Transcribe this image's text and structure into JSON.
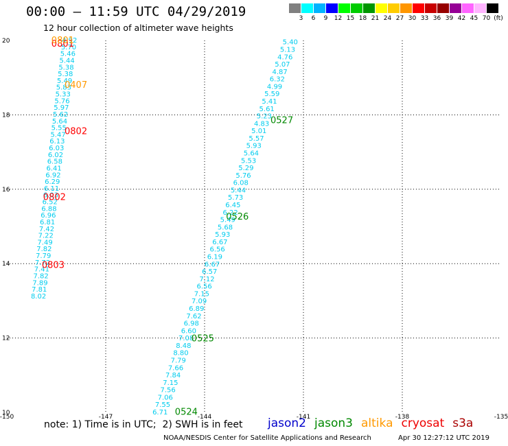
{
  "title": "00:00 – 11:59 UTC 04/29/2019",
  "subtitle": "12 hour collection of altimeter wave heights",
  "legend": {
    "unit": "(ft)",
    "colors": [
      "#808080",
      "#00ffff",
      "#00b4ff",
      "#0000ff",
      "#00ff00",
      "#00cc00",
      "#009600",
      "#ffff00",
      "#ffcc00",
      "#ff9600",
      "#ff0000",
      "#c80000",
      "#960000",
      "#960096",
      "#ff64ff",
      "#ffb4ff",
      "#000000"
    ],
    "labels": [
      "3",
      "6",
      "9",
      "12",
      "15",
      "18",
      "21",
      "24",
      "27",
      "30",
      "33",
      "36",
      "39",
      "42",
      "45",
      "70"
    ]
  },
  "note": "note: 1) Time is in UTC;  2) SWH is in feet",
  "satellites": [
    {
      "name": "jason2",
      "color": "#0000cc"
    },
    {
      "name": "jason3",
      "color": "#008800"
    },
    {
      "name": "altika",
      "color": "#ff9900"
    },
    {
      "name": "cryosat",
      "color": "#ee0000"
    },
    {
      "name": "s3a",
      "color": "#aa0000"
    }
  ],
  "credit": "NOAA/NESDIS Center for Satellite Applications and Research",
  "generated": "Apr 30 12:27:12 UTC 2019",
  "chart_data": {
    "type": "scatter",
    "title": "12 hour collection of altimeter wave heights",
    "xlim": [
      -150,
      -135
    ],
    "ylim": [
      10,
      20
    ],
    "x_ticks": [
      -150,
      -147,
      -144,
      -141,
      -138,
      -135
    ],
    "x_tick_labels": [
      "-150",
      "-147",
      "-144",
      "-141",
      "-138",
      "-135"
    ],
    "y_ticks": [
      10,
      12,
      14,
      16,
      18,
      20
    ],
    "y_tick_labels": [
      "10",
      "12",
      "14",
      "16",
      "18",
      "20"
    ],
    "grid": "dotted",
    "label_color": "#00ccee",
    "tracks": [
      {
        "name": "left track",
        "start": [
          -149.04,
          13.12
        ],
        "end": [
          -148.1,
          20.0
        ],
        "values": [
          "8.02",
          "7.81",
          "7.89",
          "7.82",
          "7.41",
          "7.72",
          "7.79",
          "7.82",
          "7.49",
          "7.22",
          "7.42",
          "6.81",
          "6.96",
          "6.88",
          "6.52",
          "6.03",
          "6.11",
          "6.29",
          "6.92",
          "6.41",
          "6.58",
          "6.02",
          "6.03",
          "6.13",
          "5.47",
          "5.55",
          "5.64",
          "5.62",
          "5.97",
          "5.76",
          "5.33",
          "5.83",
          "5.49",
          "5.38",
          "5.38",
          "5.44",
          "5.46",
          "5.70",
          "4.92"
        ]
      },
      {
        "name": "right track",
        "start": [
          -145.35,
          10.0
        ],
        "end": [
          -141.4,
          19.95
        ],
        "values": [
          "6.71",
          "7.55",
          "7.06",
          "7.56",
          "7.15",
          "7.84",
          "7.66",
          "7.79",
          "8.80",
          "8.48",
          "7.08",
          "6.60",
          "6.98",
          "7.62",
          "6.89",
          "7.09",
          "7.15",
          "6.56",
          "7.12",
          "6.57",
          "6.67",
          "6.19",
          "6.56",
          "6.67",
          "5.93",
          "5.68",
          "5.49",
          "6.22",
          "6.45",
          "5.73",
          "5.44",
          "6.08",
          "5.76",
          "5.29",
          "5.53",
          "5.64",
          "5.93",
          "5.57",
          "5.01",
          "4.83",
          "5.23",
          "5.61",
          "5.41",
          "5.59",
          "4.99",
          "6.32",
          "4.87",
          "5.07",
          "4.76",
          "5.13",
          "5.40"
        ]
      }
    ],
    "time_labels": [
      {
        "text": "0801",
        "x": -148.65,
        "y": 19.93,
        "color": "#ff0000"
      },
      {
        "text": "0801",
        "x": -148.65,
        "y": 20.02,
        "color": "#ff9900"
      },
      {
        "text": "0407",
        "x": -148.25,
        "y": 18.82,
        "color": "#ff9900"
      },
      {
        "text": "0802",
        "x": -148.25,
        "y": 17.57,
        "color": "#ff0000"
      },
      {
        "text": "0802",
        "x": -148.9,
        "y": 15.8,
        "color": "#ff0000"
      },
      {
        "text": "0803",
        "x": -148.94,
        "y": 13.98,
        "color": "#ff0000"
      },
      {
        "text": "0527",
        "x": -142.0,
        "y": 17.87,
        "color": "#008800"
      },
      {
        "text": "0526",
        "x": -143.35,
        "y": 15.28,
        "color": "#008800"
      },
      {
        "text": "0525",
        "x": -144.4,
        "y": 12.0,
        "color": "#008800"
      },
      {
        "text": "0524",
        "x": -144.9,
        "y": 10.03,
        "color": "#008800"
      }
    ]
  }
}
